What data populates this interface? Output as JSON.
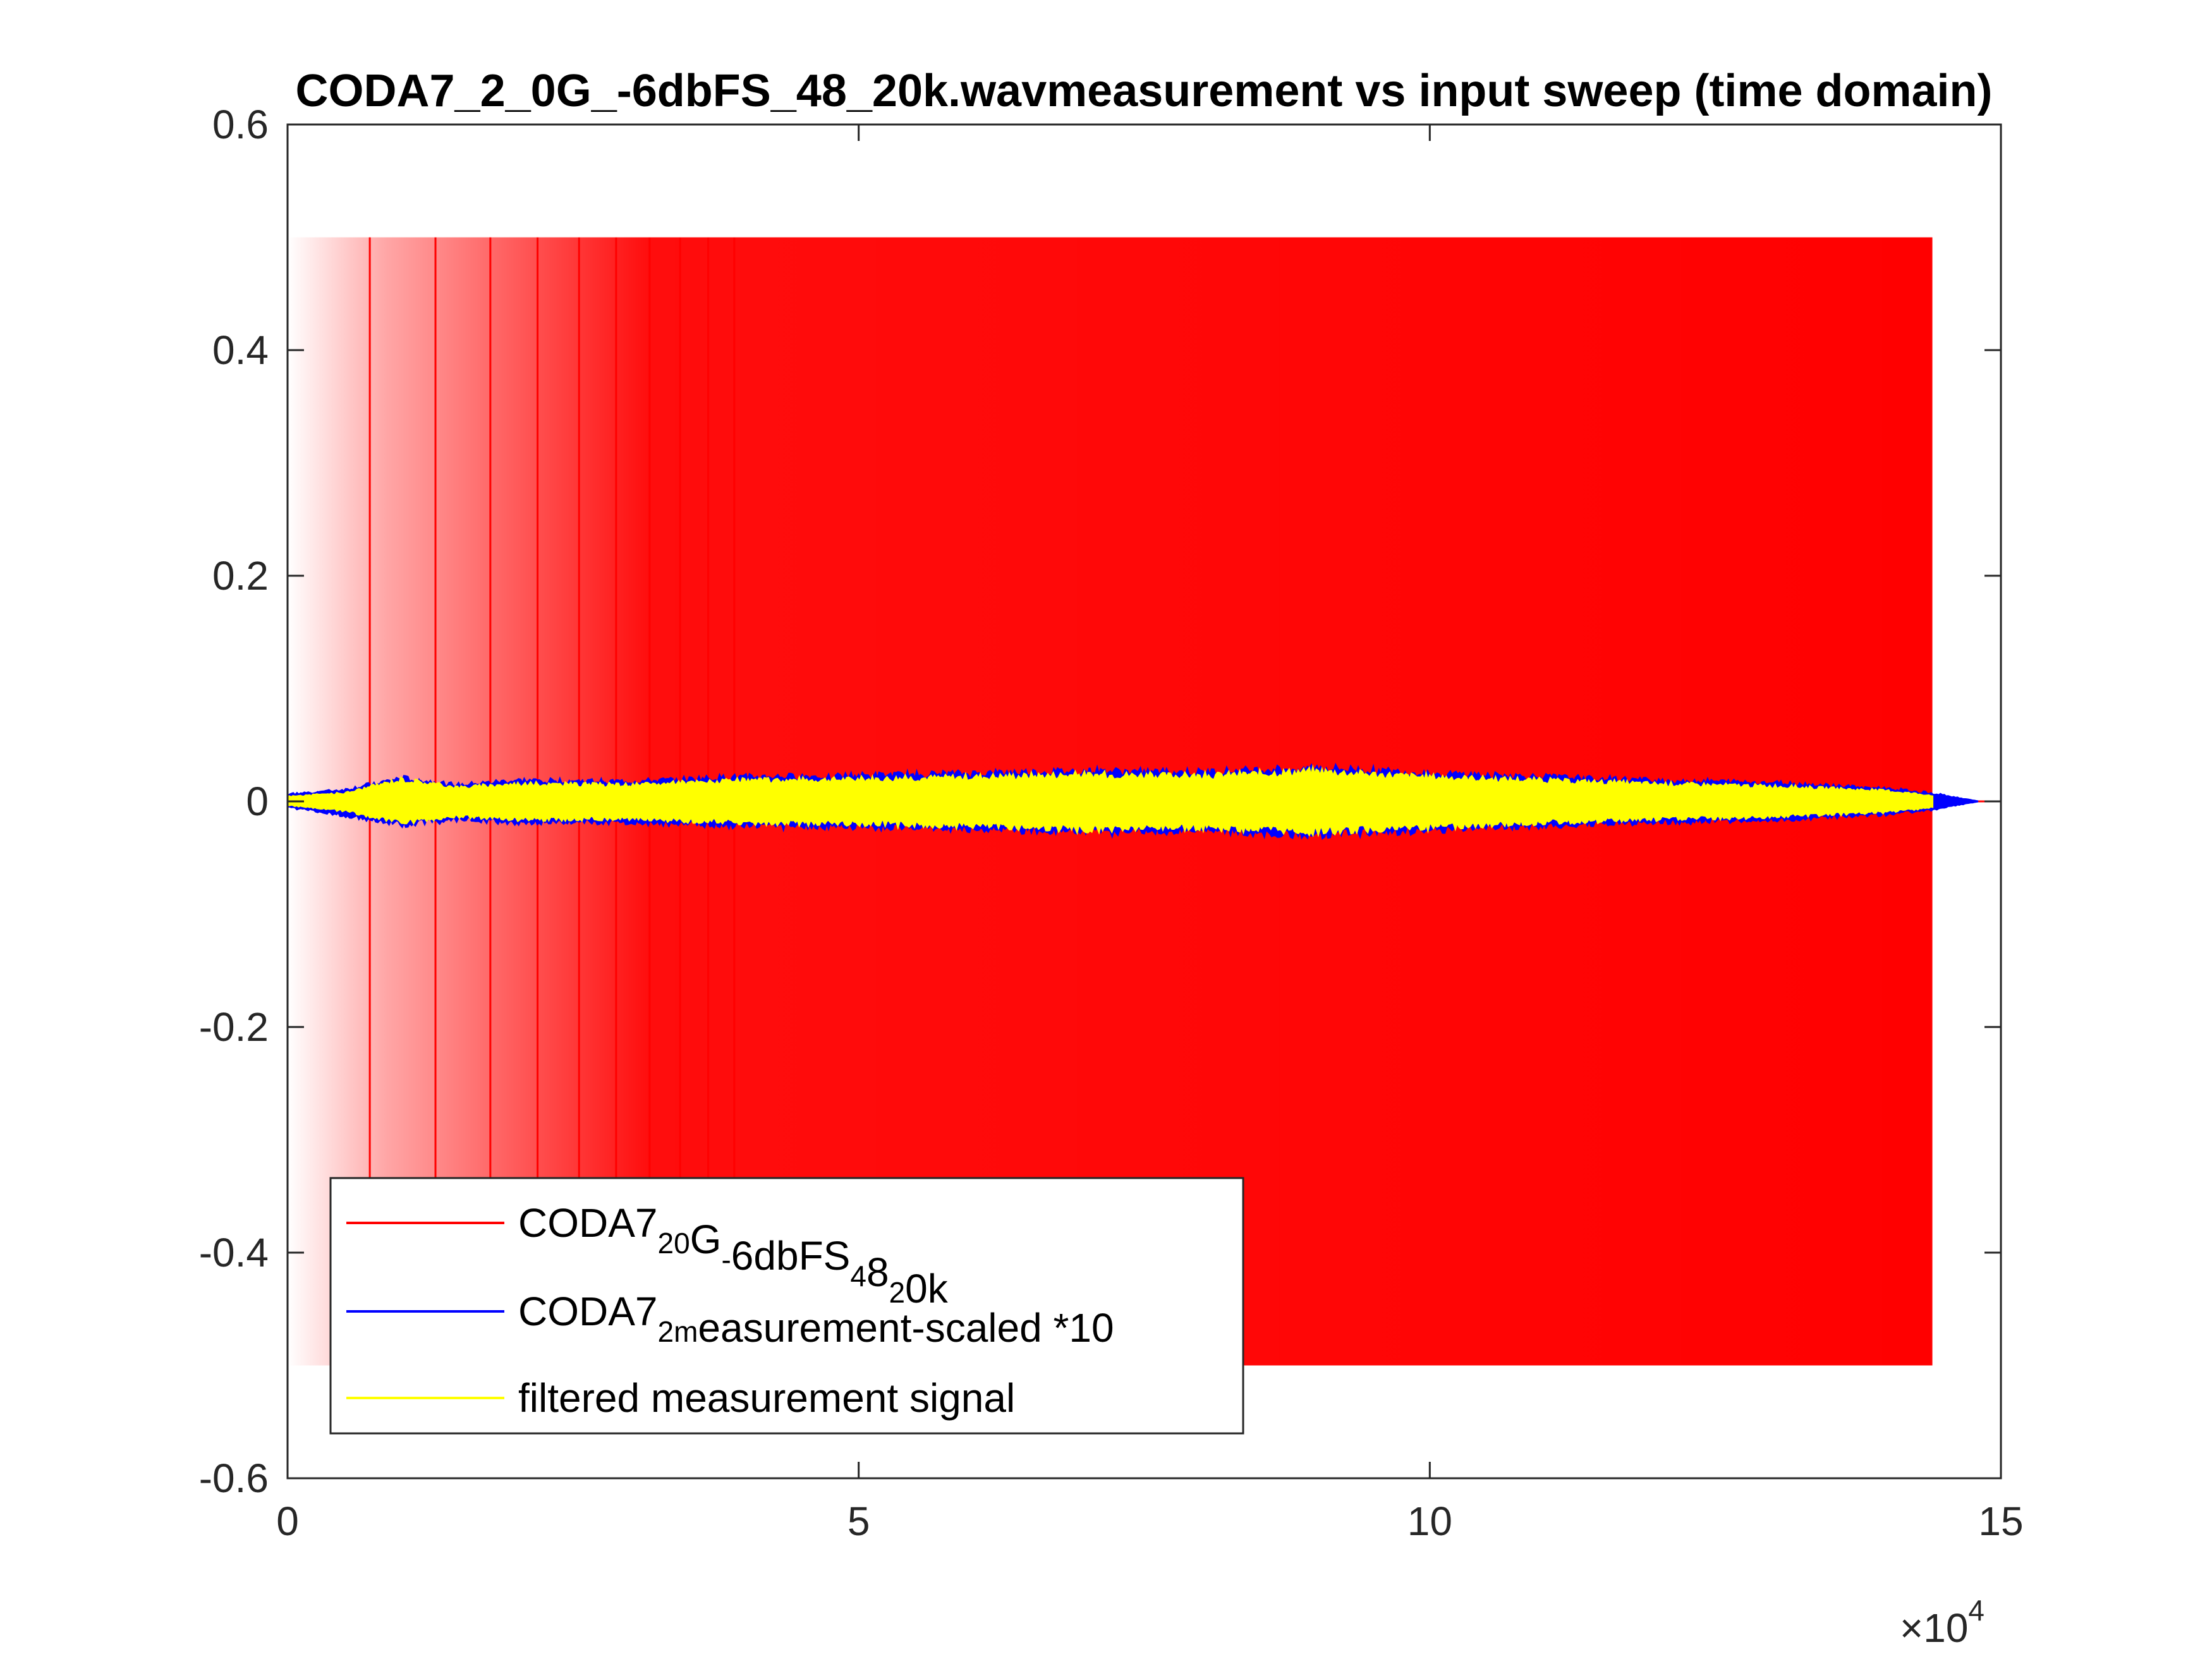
{
  "chart_data": {
    "type": "line",
    "title": "CODA7_2_0G_-6dbFS_48_20k.wavmeasurement vs input sweep (time domain)",
    "xlabel": "",
    "ylabel": "",
    "xlim": [
      0,
      150000
    ],
    "ylim": [
      -0.6,
      0.6
    ],
    "x_exponent_label": "×10",
    "x_exponent_power": "4",
    "x_ticks": [
      0,
      50000,
      100000,
      150000
    ],
    "x_tick_labels": [
      "0",
      "5",
      "10",
      "15"
    ],
    "y_ticks": [
      0.6,
      0.4,
      0.2,
      0,
      -0.2,
      -0.4,
      -0.6
    ],
    "y_tick_labels": [
      "0.6",
      "0.4",
      "0.2",
      "0",
      "-0.2",
      "-0.4",
      "-0.6"
    ],
    "grid": false,
    "legend_position": "bottom-left",
    "series": [
      {
        "name": "CODA7_20G_-6dbFS_48_20k",
        "legend_parts": [
          {
            "t": "CODA7",
            "s": false
          },
          {
            "t": "20",
            "s": "sub"
          },
          {
            "t": "G",
            "s": false
          },
          {
            "t": "-",
            "s": "sub"
          },
          {
            "t": "6dbFS",
            "s": false
          },
          {
            "t": "4",
            "s": "sub"
          },
          {
            "t": "8",
            "s": false
          },
          {
            "t": "2",
            "s": "sub"
          },
          {
            "t": "0k",
            "s": false
          }
        ],
        "color": "#ff0000",
        "kind": "sweep",
        "amplitude": 0.5,
        "x_start": 0,
        "x_end": 144000
      },
      {
        "name": "CODA7_2measurement-scaled *10",
        "legend_parts": [
          {
            "t": "CODA7",
            "s": false
          },
          {
            "t": "2m",
            "s": "sub"
          },
          {
            "t": "easurement-scaled *10",
            "s": false
          }
        ],
        "color": "#0000ff",
        "kind": "envelope",
        "envelope": {
          "x": [
            0,
            5000,
            10000,
            15000,
            20000,
            30000,
            40000,
            50000,
            60000,
            70000,
            80000,
            90000,
            100000,
            110000,
            120000,
            130000,
            140000,
            144000,
            148000
          ],
          "upper": [
            0.006,
            0.01,
            0.02,
            0.014,
            0.018,
            0.017,
            0.021,
            0.022,
            0.024,
            0.026,
            0.025,
            0.029,
            0.024,
            0.021,
            0.018,
            0.016,
            0.011,
            0.007,
            0.0
          ],
          "lower": [
            -0.005,
            -0.012,
            -0.02,
            -0.016,
            -0.018,
            -0.018,
            -0.021,
            -0.022,
            -0.024,
            -0.027,
            -0.025,
            -0.029,
            -0.025,
            -0.021,
            -0.018,
            -0.016,
            -0.011,
            -0.007,
            0.0
          ]
        }
      },
      {
        "name": "filtered measurement signal",
        "legend_parts": [
          {
            "t": "filtered measurement signal",
            "s": false
          }
        ],
        "color": "#ffff00",
        "kind": "envelope",
        "envelope": {
          "x": [
            0,
            5000,
            10000,
            15000,
            20000,
            30000,
            40000,
            50000,
            60000,
            70000,
            80000,
            90000,
            100000,
            110000,
            120000,
            130000,
            140000,
            144000
          ],
          "upper": [
            0.004,
            0.007,
            0.019,
            0.012,
            0.015,
            0.014,
            0.018,
            0.019,
            0.021,
            0.023,
            0.022,
            0.026,
            0.021,
            0.018,
            0.015,
            0.013,
            0.009,
            0.005
          ],
          "lower": [
            -0.003,
            -0.008,
            -0.018,
            -0.013,
            -0.015,
            -0.015,
            -0.018,
            -0.019,
            -0.021,
            -0.024,
            -0.022,
            -0.026,
            -0.022,
            -0.018,
            -0.015,
            -0.013,
            -0.009,
            -0.005
          ]
        }
      }
    ]
  }
}
